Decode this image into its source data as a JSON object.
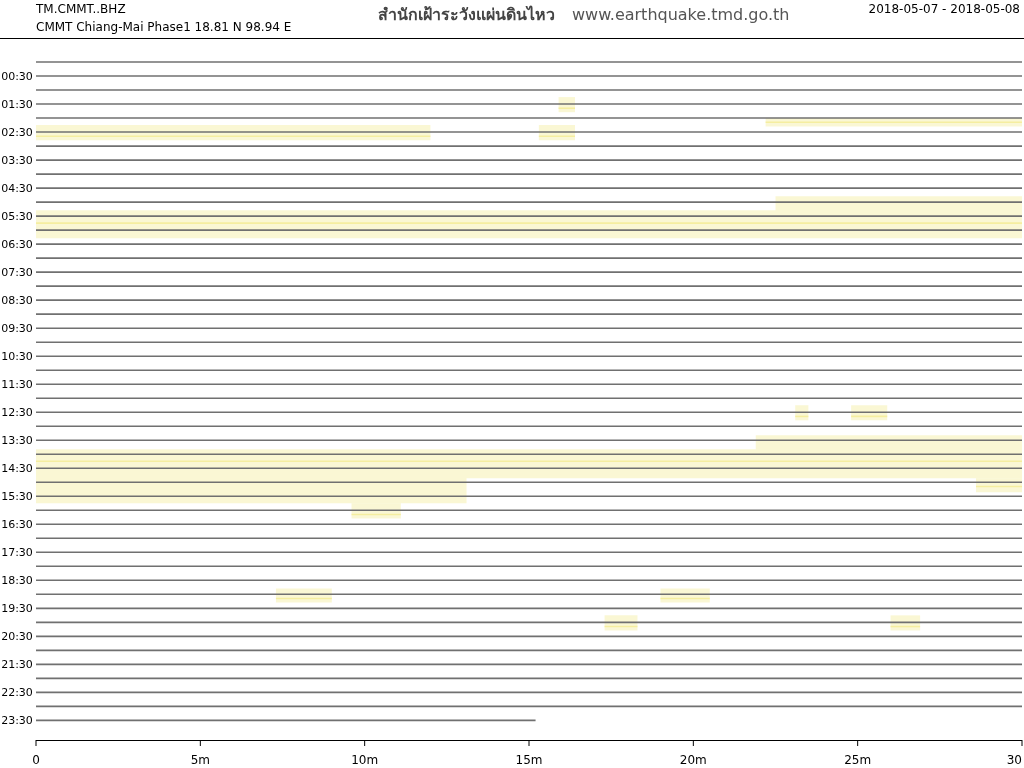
{
  "chart_data": {
    "type": "line",
    "title": "TM.CMMT..BHZ",
    "subtitle": "CMMT Chiang-Mai Phase1  18.81 N 98.94 E",
    "annotations": [
      "สำนักเฝ้าระวังแผ่นดินไหว",
      "www.earthquake.tmd.go.th",
      "2018-05-07 - 2018-05-08"
    ],
    "xlim": [
      0,
      30
    ],
    "xticks": [
      0,
      {
        "value": 5,
        "label": "5m"
      },
      {
        "value": 10,
        "label": "10m"
      },
      {
        "value": 15,
        "label": "15m"
      },
      {
        "value": 20,
        "label": "20m"
      },
      {
        "value": 25,
        "label": "25m"
      },
      {
        "value": 30,
        "label": "30"
      }
    ],
    "ylim": [
      24.2,
      -0.84
    ],
    "yticks": [
      {
        "value": 0.5,
        "label": "00:30"
      },
      {
        "value": 1.5,
        "label": "01:30"
      },
      {
        "value": 2.5,
        "label": "02:30"
      },
      {
        "value": 3.5,
        "label": "03:30"
      },
      {
        "value": 4.5,
        "label": "04:30"
      },
      {
        "value": 5.5,
        "label": "05:30"
      },
      {
        "value": 6.5,
        "label": "06:30"
      },
      {
        "value": 7.5,
        "label": "07:30"
      },
      {
        "value": 8.5,
        "label": "08:30"
      },
      {
        "value": 9.5,
        "label": "09:30"
      },
      {
        "value": 10.5,
        "label": "10:30"
      },
      {
        "value": 11.5,
        "label": "11:30"
      },
      {
        "value": 12.5,
        "label": "12:30"
      },
      {
        "value": 13.5,
        "label": "13:30"
      },
      {
        "value": 14.5,
        "label": "14:30"
      },
      {
        "value": 15.5,
        "label": "15:30"
      },
      {
        "value": 16.5,
        "label": "16:30"
      },
      {
        "value": 17.5,
        "label": "17:30"
      },
      {
        "value": 18.5,
        "label": "18:30"
      },
      {
        "value": 19.5,
        "label": "19:30"
      },
      {
        "value": 20.5,
        "label": "20:30"
      },
      {
        "value": 21.5,
        "label": "21:30"
      },
      {
        "value": 22.5,
        "label": "22:30"
      },
      {
        "value": 23.5,
        "label": "23:30"
      }
    ],
    "series": [
      {
        "color": "#f5eea0",
        "x": [
          0,
          12
        ],
        "values": [
          2.65,
          2.65
        ],
        "lower": [
          2.25,
          2.25
        ],
        "upper": [
          2.79,
          2.79
        ]
      },
      {
        "color": "#f5eea0",
        "x": [
          15.3,
          16.4
        ],
        "values": [
          2.65,
          2.65
        ],
        "lower": [
          2.25,
          2.25
        ],
        "upper": [
          2.79,
          2.79
        ]
      },
      {
        "color": "#f5eea0",
        "x": [
          22.2,
          30
        ],
        "values": [
          2.15,
          2.15
        ],
        "lower": [
          2.0,
          2.0
        ],
        "upper": [
          2.3,
          2.3
        ]
      },
      {
        "color": "#f5eea0",
        "x": [
          15.9,
          16.4
        ],
        "values": [
          1.65,
          1.65
        ],
        "lower": [
          1.25,
          1.25
        ],
        "upper": [
          1.79,
          1.79
        ]
      },
      {
        "color": "#f5eea0",
        "x": [
          0,
          22.5,
          22.5,
          30
        ],
        "values": [
          5.75,
          5.75,
          5.75,
          5.75
        ],
        "lower": [
          5.29,
          5.29,
          4.79,
          4.79
        ],
        "upper": [
          6.29,
          6.29,
          6.29,
          6.29
        ]
      },
      {
        "color": "#f5eea0",
        "x": [
          23.1,
          23.5
        ],
        "values": [
          12.65,
          12.65
        ],
        "lower": [
          12.25,
          12.25
        ],
        "upper": [
          12.79,
          12.79
        ]
      },
      {
        "color": "#f5eea0",
        "x": [
          24.8,
          25.9
        ],
        "values": [
          12.65,
          12.65
        ],
        "lower": [
          12.25,
          12.25
        ],
        "upper": [
          12.79,
          12.79
        ]
      },
      {
        "color": "#f5eea0",
        "x": [
          0,
          13.1,
          13.1,
          21.9,
          21.9,
          30
        ],
        "values": [
          14.25,
          14.25,
          14.25,
          14.25,
          14.25,
          14.25
        ],
        "lower": [
          13.82,
          13.82,
          13.82,
          13.82,
          13.32,
          13.32
        ],
        "upper": [
          15.75,
          15.75,
          14.86,
          14.86,
          14.86,
          14.86
        ]
      },
      {
        "color": "#f5eea0",
        "x": [
          28.6,
          30
        ],
        "values": [
          15.15,
          15.15
        ],
        "lower": [
          14.86,
          14.86
        ],
        "upper": [
          15.36,
          15.36
        ]
      },
      {
        "color": "#f5eea0",
        "x": [
          9.6,
          11.1
        ],
        "values": [
          16.15,
          16.15
        ],
        "lower": [
          15.75,
          15.75
        ],
        "upper": [
          16.29,
          16.29
        ]
      },
      {
        "color": "#f5eea0",
        "x": [
          7.3,
          9.0
        ],
        "values": [
          19.15,
          19.15
        ],
        "lower": [
          18.79,
          18.79
        ],
        "upper": [
          19.29,
          19.29
        ]
      },
      {
        "color": "#f5eea0",
        "x": [
          19.0,
          20.5
        ],
        "values": [
          19.15,
          19.15
        ],
        "lower": [
          18.79,
          18.79
        ],
        "upper": [
          19.29,
          19.29
        ]
      },
      {
        "color": "#f5eea0",
        "x": [
          17.3,
          18.3
        ],
        "values": [
          20.15,
          20.15
        ],
        "lower": [
          19.75,
          19.75
        ],
        "upper": [
          20.29,
          20.29
        ]
      },
      {
        "color": "#f5eea0",
        "x": [
          26.0,
          26.9
        ],
        "values": [
          20.15,
          20.15
        ],
        "lower": [
          19.75,
          19.75
        ],
        "upper": [
          20.29,
          20.29
        ]
      },
      {
        "color": "#707070",
        "x": [
          0,
          30
        ],
        "values": [
          0,
          0
        ]
      },
      {
        "color": "#707070",
        "x": [
          0,
          30
        ],
        "values": [
          0.5,
          0.5
        ]
      },
      {
        "color": "#707070",
        "x": [
          0,
          30
        ],
        "values": [
          1,
          1
        ]
      },
      {
        "color": "#707070",
        "x": [
          0,
          30
        ],
        "values": [
          1.5,
          1.5
        ]
      },
      {
        "color": "#707070",
        "x": [
          0,
          30
        ],
        "values": [
          2,
          2
        ]
      },
      {
        "color": "#707070",
        "x": [
          0,
          30
        ],
        "values": [
          2.5,
          2.5
        ]
      },
      {
        "color": "#707070",
        "x": [
          0,
          30
        ],
        "values": [
          3,
          3
        ]
      },
      {
        "color": "#707070",
        "x": [
          0,
          30
        ],
        "values": [
          3.5,
          3.5
        ]
      },
      {
        "color": "#707070",
        "x": [
          0,
          30
        ],
        "values": [
          4,
          4
        ]
      },
      {
        "color": "#707070",
        "x": [
          0,
          30
        ],
        "values": [
          4.5,
          4.5
        ]
      },
      {
        "color": "#707070",
        "x": [
          0,
          30
        ],
        "values": [
          5,
          5
        ]
      },
      {
        "color": "#707070",
        "x": [
          0,
          30
        ],
        "values": [
          5.5,
          5.5
        ]
      },
      {
        "color": "#707070",
        "x": [
          0,
          30
        ],
        "values": [
          6,
          6
        ]
      },
      {
        "color": "#707070",
        "x": [
          0,
          30
        ],
        "values": [
          6.5,
          6.5
        ]
      },
      {
        "color": "#707070",
        "x": [
          0,
          30
        ],
        "values": [
          7,
          7
        ]
      },
      {
        "color": "#707070",
        "x": [
          0,
          30
        ],
        "values": [
          7.5,
          7.5
        ]
      },
      {
        "color": "#707070",
        "x": [
          0,
          30
        ],
        "values": [
          8,
          8
        ]
      },
      {
        "color": "#707070",
        "x": [
          0,
          30
        ],
        "values": [
          8.5,
          8.5
        ]
      },
      {
        "color": "#707070",
        "x": [
          0,
          30
        ],
        "values": [
          9,
          9
        ]
      },
      {
        "color": "#707070",
        "x": [
          0,
          30
        ],
        "values": [
          9.5,
          9.5
        ]
      },
      {
        "color": "#707070",
        "x": [
          0,
          30
        ],
        "values": [
          10,
          10
        ]
      },
      {
        "color": "#707070",
        "x": [
          0,
          30
        ],
        "values": [
          10.5,
          10.5
        ]
      },
      {
        "color": "#707070",
        "x": [
          0,
          30
        ],
        "values": [
          11,
          11
        ]
      },
      {
        "color": "#707070",
        "x": [
          0,
          30
        ],
        "values": [
          11.5,
          11.5
        ]
      },
      {
        "color": "#707070",
        "x": [
          0,
          30
        ],
        "values": [
          12,
          12
        ]
      },
      {
        "color": "#707070",
        "x": [
          0,
          30
        ],
        "values": [
          12.5,
          12.5
        ]
      },
      {
        "color": "#707070",
        "x": [
          0,
          30
        ],
        "values": [
          13,
          13
        ]
      },
      {
        "color": "#707070",
        "x": [
          0,
          30
        ],
        "values": [
          13.5,
          13.5
        ]
      },
      {
        "color": "#707070",
        "x": [
          0,
          30
        ],
        "values": [
          14,
          14
        ]
      },
      {
        "color": "#707070",
        "x": [
          0,
          30
        ],
        "values": [
          14.5,
          14.5
        ]
      },
      {
        "color": "#707070",
        "x": [
          0,
          30
        ],
        "values": [
          15,
          15
        ]
      },
      {
        "color": "#707070",
        "x": [
          0,
          30
        ],
        "values": [
          15.5,
          15.5
        ]
      },
      {
        "color": "#707070",
        "x": [
          0,
          30
        ],
        "values": [
          16,
          16
        ]
      },
      {
        "color": "#707070",
        "x": [
          0,
          30
        ],
        "values": [
          16.5,
          16.5
        ]
      },
      {
        "color": "#707070",
        "x": [
          0,
          30
        ],
        "values": [
          17,
          17
        ]
      },
      {
        "color": "#707070",
        "x": [
          0,
          30
        ],
        "values": [
          17.5,
          17.5
        ]
      },
      {
        "color": "#707070",
        "x": [
          0,
          30
        ],
        "values": [
          18,
          18
        ]
      },
      {
        "color": "#707070",
        "x": [
          0,
          30
        ],
        "values": [
          18.5,
          18.5
        ]
      },
      {
        "color": "#707070",
        "x": [
          0,
          30
        ],
        "values": [
          19,
          19
        ]
      },
      {
        "color": "#707070",
        "x": [
          0,
          30
        ],
        "values": [
          19.5,
          19.5
        ]
      },
      {
        "color": "#707070",
        "x": [
          0,
          30
        ],
        "values": [
          20,
          20
        ]
      },
      {
        "color": "#707070",
        "x": [
          0,
          30
        ],
        "values": [
          20.5,
          20.5
        ]
      },
      {
        "color": "#707070",
        "x": [
          0,
          30
        ],
        "values": [
          21,
          21
        ]
      },
      {
        "color": "#707070",
        "x": [
          0,
          30
        ],
        "values": [
          21.5,
          21.5
        ]
      },
      {
        "color": "#707070",
        "x": [
          0,
          30
        ],
        "values": [
          22,
          22
        ]
      },
      {
        "color": "#707070",
        "x": [
          0,
          30
        ],
        "values": [
          22.5,
          22.5
        ]
      },
      {
        "color": "#707070",
        "x": [
          0,
          30
        ],
        "values": [
          23,
          23
        ]
      },
      {
        "color": "#707070",
        "x": [
          0,
          15.2
        ],
        "values": [
          23.5,
          23.5
        ]
      }
    ]
  }
}
